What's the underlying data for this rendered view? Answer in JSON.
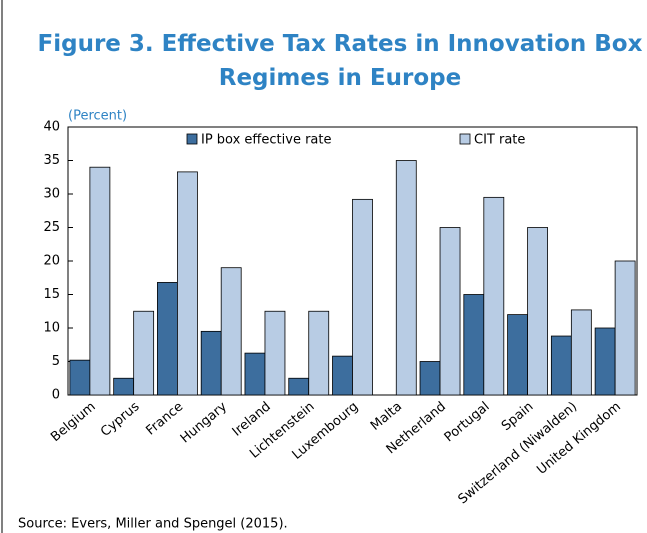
{
  "chart_data": {
    "type": "bar",
    "title": "Figure 3. Effective Tax Rates in Innovation Box Regimes in Europe",
    "subtitle": "(Percent)",
    "source": "Source: Evers, Miller and Spengel (2015).",
    "categories": [
      "Belgium",
      "Cyprus",
      "France",
      "Hungary",
      "Ireland",
      "Lichtenstein",
      "Luxembourg",
      "Malta",
      "Netherland",
      "Portugal",
      "Spain",
      "Switzerland (Niwalden)",
      "United Kingdom"
    ],
    "series": [
      {
        "name": "IP box effective rate",
        "color": "#3d6e9e",
        "values": [
          5.2,
          2.5,
          16.8,
          9.5,
          6.25,
          2.5,
          5.8,
          0,
          5,
          15,
          12,
          8.8,
          10
        ]
      },
      {
        "name": "CIT rate",
        "color": "#b8cce4",
        "values": [
          34,
          12.5,
          33.3,
          19,
          12.5,
          12.5,
          29.2,
          35,
          25,
          29.5,
          25,
          12.7,
          20
        ]
      }
    ],
    "ylim": [
      0,
      40
    ],
    "yticks": [
      0,
      5,
      10,
      15,
      20,
      25,
      30,
      35,
      40
    ],
    "legend": "top",
    "grid": false
  }
}
